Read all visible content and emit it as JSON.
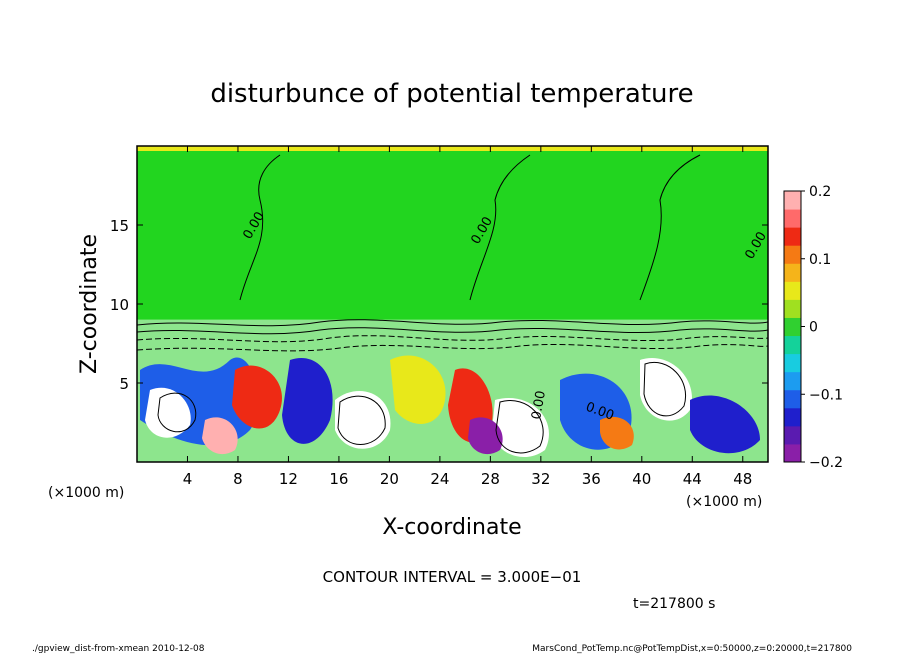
{
  "chart_data": {
    "type": "heatmap",
    "title": "disturbunce of potential temperature",
    "xlabel": "X-coordinate",
    "ylabel": "Z-coordinate",
    "x_unit_left": "(×1000 m)",
    "x_unit_right": "(×1000 m)",
    "xlim": [
      0,
      50
    ],
    "ylim": [
      0,
      20
    ],
    "xticks": [
      4,
      8,
      12,
      16,
      20,
      24,
      28,
      32,
      36,
      40,
      44,
      48
    ],
    "yticks": [
      5,
      10,
      15
    ],
    "colorbar": {
      "ticks": [
        0.2,
        0.1,
        0,
        -0.1,
        -0.2
      ],
      "tick_labels": [
        "0.2",
        "0.1",
        "0",
        "−0.1",
        "−0.2"
      ],
      "vmin": -0.2,
      "vmax": 0.2,
      "colors": [
        "#8a1fa8",
        "#5a1bb0",
        "#1f1fcc",
        "#1e5ee8",
        "#1c9cf0",
        "#18cce0",
        "#14d29a",
        "#30d030",
        "#a0e020",
        "#e8e81a",
        "#f5b41a",
        "#f57a14",
        "#ee2a14",
        "#ff6a6a",
        "#ffb0b0"
      ]
    },
    "contour_labels": [
      "0.00",
      "0.00",
      "0.00",
      "0.00",
      "0.00"
    ],
    "upper_layer_value": 0.0,
    "upper_layer_from_z": 9
  },
  "annotations": {
    "contour_interval": "CONTOUR INTERVAL = 3.000E−01",
    "time": "t=217800 s",
    "footer_left": "./gpview_dist-from-xmean   2010-12-08",
    "footer_right": "MarsCond_PotTemp.nc@PotTempDist,x=0:50000,z=0:20000,t=217800"
  },
  "colors": {
    "upper_layer": "#22d51f",
    "top_strip": "#e8e81a"
  }
}
